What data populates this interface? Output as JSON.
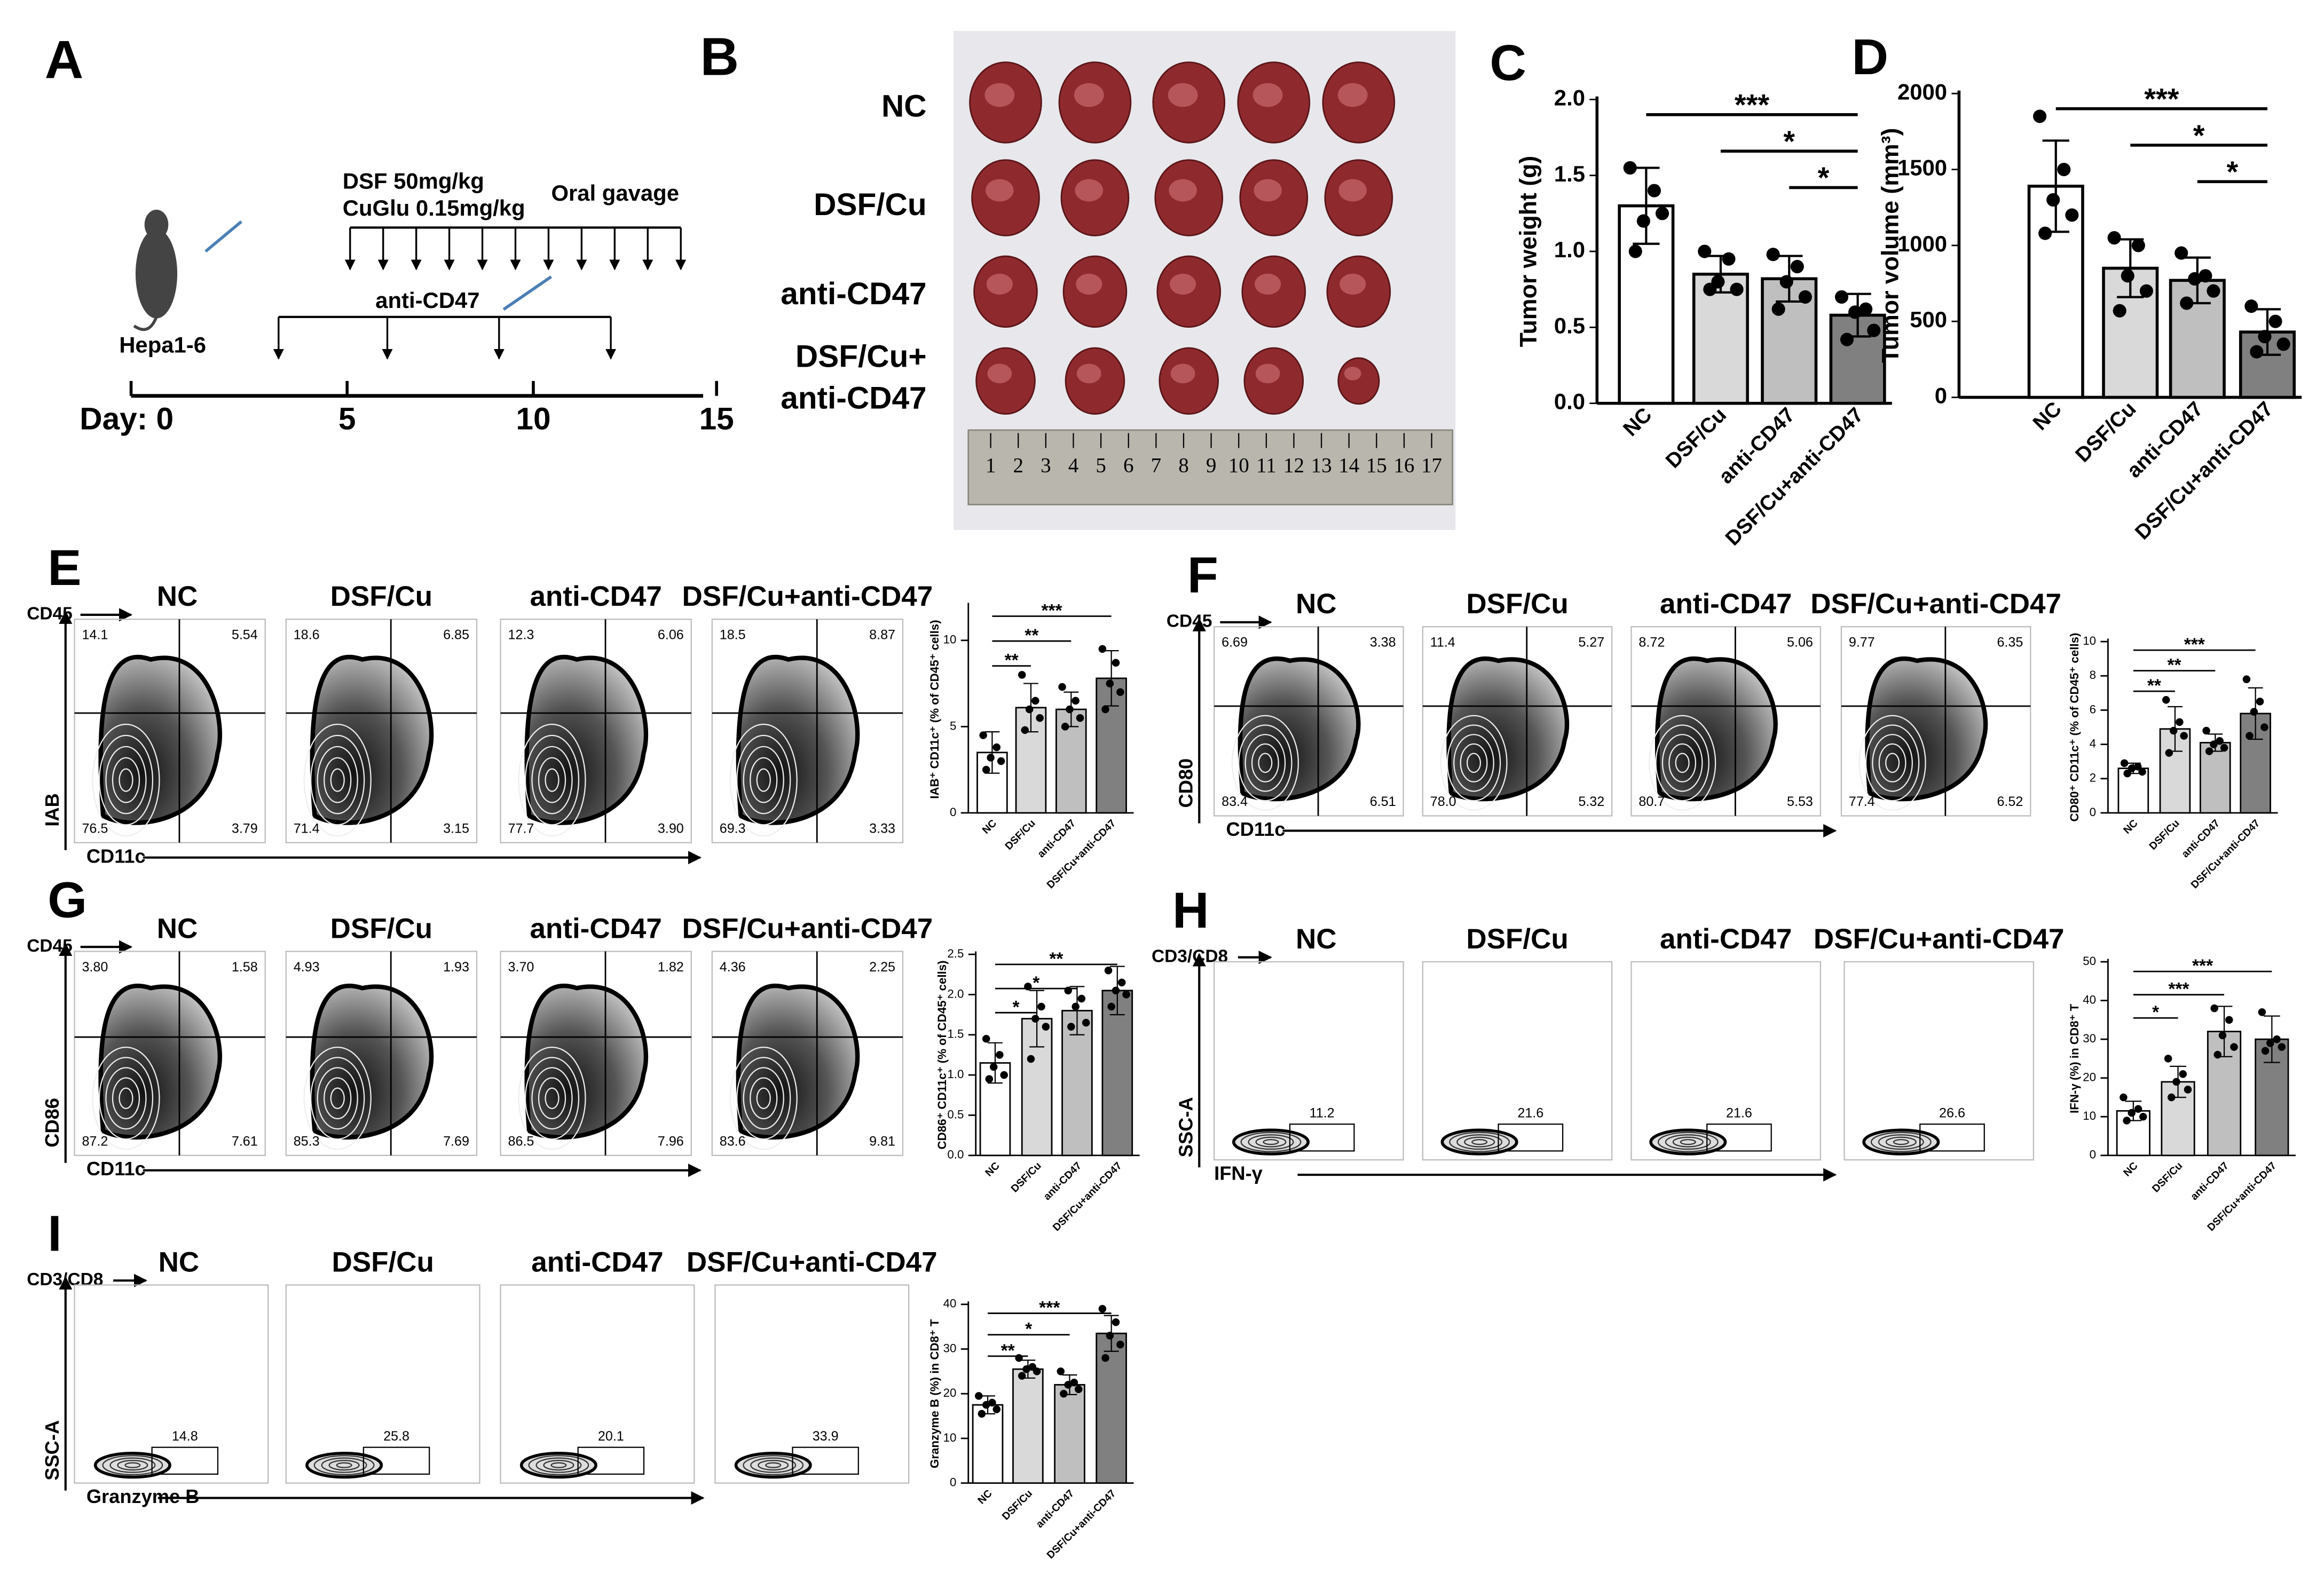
{
  "timeline": {
    "letter": "A",
    "dose1": "DSF  50mg/kg",
    "dose2": "CuGlu 0.15mg/kg",
    "route": "Oral gavage",
    "antibody": "anti-CD47",
    "cell_line": "Hepa1-6",
    "days": [
      "Day: 0",
      "5",
      "10",
      "15"
    ]
  },
  "photo": {
    "letter": "B",
    "row_labels": [
      [
        "NC"
      ],
      [
        "DSF/Cu"
      ],
      [
        "anti-CD47"
      ],
      [
        "DSF/Cu+",
        "anti-CD47"
      ]
    ],
    "ruler": [
      1,
      2,
      3,
      4,
      5,
      6,
      7,
      8,
      9,
      10,
      11,
      12,
      13,
      14,
      15,
      16,
      17
    ]
  },
  "flow": [
    {
      "letter": "E",
      "kind": "quadrant",
      "top_label": "CD45",
      "y_label": "IAB",
      "x_label": "CD11c",
      "groups": [
        "NC",
        "DSF/Cu",
        "anti-CD47",
        "DSF/Cu+anti-CD47"
      ],
      "gates": [
        [
          "14.1",
          "5.54",
          "76.5",
          "3.79"
        ],
        [
          "18.6",
          "6.85",
          "71.4",
          "3.15"
        ],
        [
          "12.3",
          "6.06",
          "77.7",
          "3.90"
        ],
        [
          "18.5",
          "8.87",
          "69.3",
          "3.33"
        ]
      ]
    },
    {
      "letter": "F",
      "kind": "quadrant",
      "top_label": "CD45",
      "y_label": "CD80",
      "x_label": "CD11c",
      "groups": [
        "NC",
        "DSF/Cu",
        "anti-CD47",
        "DSF/Cu+anti-CD47"
      ],
      "gates": [
        [
          "6.69",
          "3.38",
          "83.4",
          "6.51"
        ],
        [
          "11.4",
          "5.27",
          "78.0",
          "5.32"
        ],
        [
          "8.72",
          "5.06",
          "80.7",
          "5.53"
        ],
        [
          "9.77",
          "6.35",
          "77.4",
          "6.52"
        ]
      ]
    },
    {
      "letter": "G",
      "kind": "quadrant",
      "top_label": "CD45",
      "y_label": "CD86",
      "x_label": "CD11c",
      "groups": [
        "NC",
        "DSF/Cu",
        "anti-CD47",
        "DSF/Cu+anti-CD47"
      ],
      "gates": [
        [
          "3.80",
          "1.58",
          "87.2",
          "7.61"
        ],
        [
          "4.93",
          "1.93",
          "85.3",
          "7.69"
        ],
        [
          "3.70",
          "1.82",
          "86.5",
          "7.96"
        ],
        [
          "4.36",
          "2.25",
          "83.6",
          "9.81"
        ]
      ]
    },
    {
      "letter": "H",
      "kind": "gate",
      "top_label": "CD3/CD8",
      "y_label": "SSC-A",
      "x_label": "IFN-γ",
      "groups": [
        "NC",
        "DSF/Cu",
        "anti-CD47",
        "DSF/Cu+anti-CD47"
      ],
      "gates": [
        [
          "11.2"
        ],
        [
          "21.6"
        ],
        [
          "21.6"
        ],
        [
          "26.6"
        ]
      ]
    },
    {
      "letter": "I",
      "kind": "gate",
      "top_label": "CD3/CD8",
      "y_label": "SSC-A",
      "x_label": "Granzyme B",
      "groups": [
        "NC",
        "DSF/Cu",
        "anti-CD47",
        "DSF/Cu+anti-CD47"
      ],
      "gates": [
        [
          "14.8"
        ],
        [
          "25.8"
        ],
        [
          "20.1"
        ],
        [
          "33.9"
        ]
      ]
    }
  ],
  "chart_data": [
    {
      "type": "bar",
      "letter": "C",
      "ylabel": "Tumor weight (g)",
      "categories": [
        "NC",
        "DSF/Cu",
        "anti-CD47",
        "DSF/Cu+anti-CD47"
      ],
      "values": [
        1.3,
        0.85,
        0.82,
        0.58
      ],
      "errors": [
        0.25,
        0.12,
        0.15,
        0.14
      ],
      "points": [
        [
          1.55,
          1.4,
          1.2,
          1.25,
          1.0
        ],
        [
          1.0,
          0.95,
          0.8,
          0.75,
          0.75
        ],
        [
          0.98,
          0.9,
          0.8,
          0.7,
          0.62
        ],
        [
          0.7,
          0.62,
          0.6,
          0.48,
          0.42
        ]
      ],
      "colors": [
        "#ffffff",
        "#d9d9d9",
        "#bfbfbf",
        "#808080"
      ],
      "ylim": [
        0,
        2
      ],
      "yticks": [
        {
          "value": 0,
          "label": "0.0"
        },
        {
          "value": 0.5,
          "label": "0.5"
        },
        {
          "value": 1,
          "label": "1.0"
        },
        {
          "value": 1.5,
          "label": "1.5"
        },
        {
          "value": 2,
          "label": "2.0"
        }
      ],
      "significance": [
        {
          "from": "NC",
          "to": "DSF/Cu+anti-CD47",
          "label": "***"
        },
        {
          "from": "DSF/Cu",
          "to": "DSF/Cu+anti-CD47",
          "label": "*"
        },
        {
          "from": "anti-CD47",
          "to": "DSF/Cu+anti-CD47",
          "label": "*"
        }
      ]
    },
    {
      "type": "bar",
      "letter": "D",
      "ylabel": "Tumor volume (mm³)",
      "categories": [
        "NC",
        "DSF/Cu",
        "anti-CD47",
        "DSF/Cu+anti-CD47"
      ],
      "values": [
        1390,
        850,
        770,
        430
      ],
      "errors": [
        300,
        190,
        150,
        150
      ],
      "points": [
        [
          1850,
          1500,
          1300,
          1200,
          1080
        ],
        [
          1050,
          1000,
          800,
          700,
          570
        ],
        [
          950,
          800,
          780,
          700,
          620
        ],
        [
          600,
          500,
          400,
          350,
          300
        ]
      ],
      "colors": [
        "#ffffff",
        "#d9d9d9",
        "#bfbfbf",
        "#808080"
      ],
      "ylim": [
        0,
        2000
      ],
      "yticks": [
        0,
        500,
        1000,
        1500,
        2000
      ],
      "significance": [
        {
          "from": "NC",
          "to": "DSF/Cu+anti-CD47",
          "label": "***"
        },
        {
          "from": "DSF/Cu",
          "to": "DSF/Cu+anti-CD47",
          "label": "*"
        },
        {
          "from": "anti-CD47",
          "to": "DSF/Cu+anti-CD47",
          "label": "*"
        }
      ]
    },
    {
      "type": "bar",
      "ylabel": "IAB⁺ CD11c⁺ (% of CD45⁺ cells)",
      "categories": [
        "NC",
        "DSF/Cu",
        "anti-CD47",
        "DSF/Cu+anti-CD47"
      ],
      "values": [
        3.5,
        6.1,
        6.0,
        7.8
      ],
      "errors": [
        1.2,
        1.4,
        1.0,
        1.6
      ],
      "points": [
        [
          4.5,
          3.8,
          3.2,
          3.0,
          2.5
        ],
        [
          8.0,
          6.5,
          6.0,
          5.5,
          4.8
        ],
        [
          7.3,
          6.5,
          6.0,
          5.5,
          5.0
        ],
        [
          9.5,
          8.7,
          7.5,
          7.0,
          6.0
        ]
      ],
      "colors": [
        "#ffffff",
        "#d9d9d9",
        "#bfbfbf",
        "#808080"
      ],
      "ylim": [
        0,
        12
      ],
      "yticks": [
        0,
        5,
        10
      ],
      "significance": [
        {
          "from": "NC",
          "to": "DSF/Cu+anti-CD47",
          "label": "***"
        },
        {
          "from": "NC",
          "to": "anti-CD47",
          "label": "**"
        },
        {
          "from": "NC",
          "to": "DSF/Cu",
          "label": "**"
        }
      ]
    },
    {
      "type": "bar",
      "ylabel": "CD80⁺ CD11c⁺ (% of CD45⁺ cells)",
      "categories": [
        "NC",
        "DSF/Cu",
        "anti-CD47",
        "DSF/Cu+anti-CD47"
      ],
      "values": [
        2.6,
        4.9,
        4.1,
        5.8
      ],
      "errors": [
        0.3,
        1.3,
        0.5,
        1.5
      ],
      "points": [
        [
          2.9,
          2.7,
          2.6,
          2.4,
          2.3
        ],
        [
          6.6,
          5.3,
          4.8,
          4.5,
          3.5
        ],
        [
          4.8,
          4.2,
          4.0,
          3.8,
          3.6
        ],
        [
          7.8,
          6.5,
          5.9,
          5.0,
          4.5
        ]
      ],
      "colors": [
        "#ffffff",
        "#d9d9d9",
        "#bfbfbf",
        "#808080"
      ],
      "ylim": [
        0,
        10
      ],
      "yticks": [
        0,
        2,
        4,
        6,
        8,
        10
      ],
      "significance": [
        {
          "from": "NC",
          "to": "DSF/Cu+anti-CD47",
          "label": "***"
        },
        {
          "from": "NC",
          "to": "anti-CD47",
          "label": "**"
        },
        {
          "from": "NC",
          "to": "DSF/Cu",
          "label": "**"
        }
      ]
    },
    {
      "type": "bar",
      "ylabel": "CD86⁺ CD11c⁺ (% of CD45⁺ cells)",
      "categories": [
        "NC",
        "DSF/Cu",
        "anti-CD47",
        "DSF/Cu+anti-CD47"
      ],
      "values": [
        1.15,
        1.7,
        1.8,
        2.05
      ],
      "errors": [
        0.25,
        0.35,
        0.3,
        0.3
      ],
      "points": [
        [
          1.45,
          1.25,
          1.1,
          1.0,
          0.95
        ],
        [
          2.1,
          1.85,
          1.7,
          1.6,
          1.2
        ],
        [
          2.05,
          1.95,
          1.85,
          1.65,
          1.6
        ],
        [
          2.3,
          2.15,
          2.05,
          2.0,
          1.85
        ]
      ],
      "colors": [
        "#ffffff",
        "#d9d9d9",
        "#bfbfbf",
        "#808080"
      ],
      "ylim": [
        0,
        2.5
      ],
      "yticks": [
        {
          "value": 0,
          "label": "0.0"
        },
        {
          "value": 0.5,
          "label": "0.5"
        },
        {
          "value": 1,
          "label": "1.0"
        },
        {
          "value": 1.5,
          "label": "1.5"
        },
        {
          "value": 2,
          "label": "2.0"
        },
        2.5
      ],
      "significance": [
        {
          "from": "NC",
          "to": "DSF/Cu+anti-CD47",
          "label": "**"
        },
        {
          "from": "NC",
          "to": "anti-CD47",
          "label": "*"
        },
        {
          "from": "NC",
          "to": "DSF/Cu",
          "label": "*"
        }
      ]
    },
    {
      "type": "bar",
      "ylabel": "IFN-γ (%) in CD8⁺ T",
      "categories": [
        "NC",
        "DSF/Cu",
        "anti-CD47",
        "DSF/Cu+anti-CD47"
      ],
      "values": [
        11.5,
        19,
        32,
        30
      ],
      "errors": [
        2.5,
        4,
        6.5,
        6
      ],
      "points": [
        [
          15,
          12,
          11,
          10,
          9
        ],
        [
          25,
          21,
          19,
          17,
          15
        ],
        [
          38,
          35,
          31,
          28,
          26
        ],
        [
          37,
          30,
          29,
          28,
          27
        ]
      ],
      "colors": [
        "#ffffff",
        "#d9d9d9",
        "#bfbfbf",
        "#808080"
      ],
      "ylim": [
        0,
        50
      ],
      "yticks": [
        0,
        10,
        20,
        30,
        40,
        50
      ],
      "significance": [
        {
          "from": "NC",
          "to": "DSF/Cu+anti-CD47",
          "label": "***"
        },
        {
          "from": "NC",
          "to": "anti-CD47",
          "label": "***"
        },
        {
          "from": "NC",
          "to": "DSF/Cu",
          "label": "*"
        }
      ]
    },
    {
      "type": "bar",
      "ylabel": "Granzyme B (%) in CD8⁺ T",
      "categories": [
        "NC",
        "DSF/Cu",
        "anti-CD47",
        "DSF/Cu+anti-CD47"
      ],
      "values": [
        17.5,
        25.5,
        22,
        33.5
      ],
      "errors": [
        2,
        2,
        2.2,
        4
      ],
      "points": [
        [
          19.5,
          18,
          17.5,
          16.5,
          15.5
        ],
        [
          28,
          26,
          25.5,
          25,
          24
        ],
        [
          25,
          22.5,
          22,
          21,
          20
        ],
        [
          39,
          36,
          33,
          31,
          28
        ]
      ],
      "colors": [
        "#ffffff",
        "#d9d9d9",
        "#bfbfbf",
        "#808080"
      ],
      "ylim": [
        0,
        40
      ],
      "yticks": [
        0,
        10,
        20,
        30,
        40
      ],
      "significance": [
        {
          "from": "NC",
          "to": "DSF/Cu+anti-CD47",
          "label": "***"
        },
        {
          "from": "NC",
          "to": "anti-CD47",
          "label": "*"
        },
        {
          "from": "NC",
          "to": "DSF/Cu",
          "label": "**"
        }
      ]
    }
  ]
}
